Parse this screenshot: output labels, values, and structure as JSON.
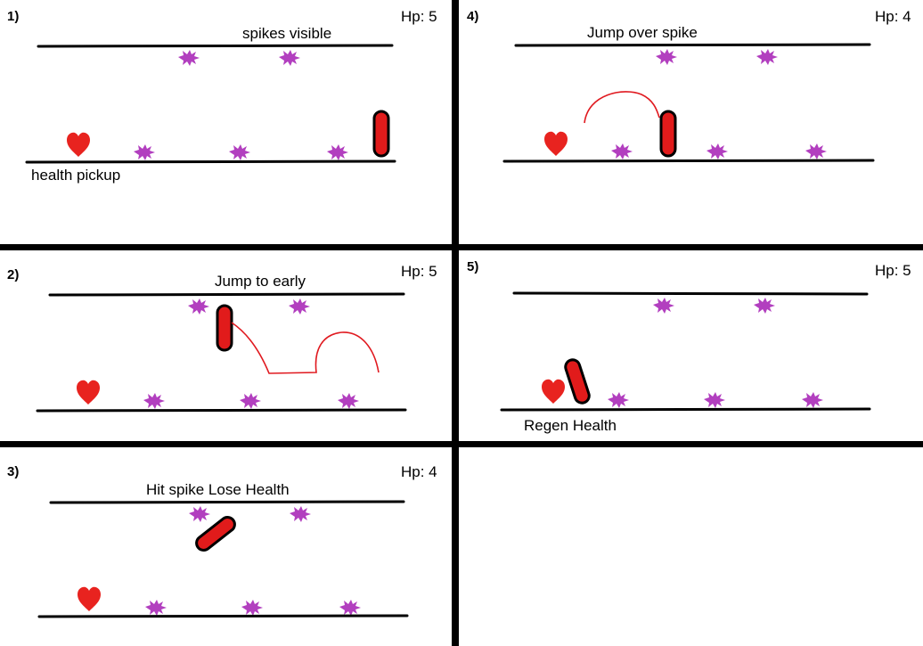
{
  "colors": {
    "divider": "#000000",
    "spike": "#b23fbf",
    "heart": "#e8231f",
    "player_fill": "#e11b1b",
    "player_outline": "#000000",
    "jump_path": "#e0191f"
  },
  "icons": {
    "spike": "spike-hazard-icon",
    "heart": "heart-health-pickup-icon",
    "player": "player-capsule-icon"
  },
  "panels": [
    {
      "id": "p1",
      "number": "1)",
      "hp": "Hp: 5",
      "caption": "spikes visible",
      "footer": "health pickup"
    },
    {
      "id": "p4",
      "number": "4)",
      "hp": "Hp: 4",
      "caption": "Jump over spike",
      "footer": ""
    },
    {
      "id": "p2",
      "number": "2)",
      "hp": "Hp: 5",
      "caption": "Jump to early",
      "footer": ""
    },
    {
      "id": "p5",
      "number": "5)",
      "hp": "Hp: 5",
      "caption": "",
      "footer": "Regen Health"
    },
    {
      "id": "p3",
      "number": "3)",
      "hp": "Hp: 4",
      "caption": "Hit spike Lose Health",
      "footer": ""
    }
  ]
}
